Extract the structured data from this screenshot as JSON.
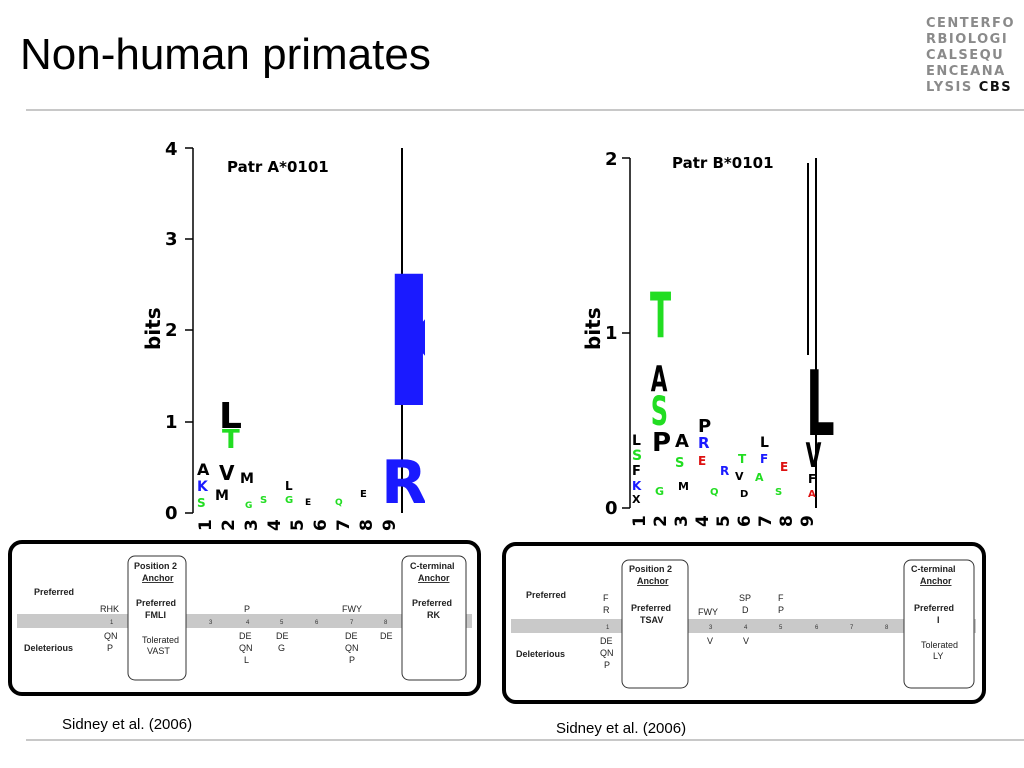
{
  "slide": {
    "title": "Non-human primates",
    "logo_lines": [
      "CENTERFO",
      "RBIOLOGI",
      "CALSEQU",
      "ENCEANA",
      "LYSIS"
    ],
    "logo_tail": "CBS"
  },
  "left": {
    "logo_title": "Patr A*0101",
    "y_label": "bits",
    "y_ticks": [
      "0",
      "1",
      "2",
      "3",
      "4"
    ],
    "x_ticks": [
      "1",
      "2",
      "3",
      "4",
      "5",
      "6",
      "7",
      "8",
      "9"
    ],
    "table": {
      "preferred_label": "Preferred",
      "deleterious_label": "Deleterious",
      "pos2_title": "Position 2",
      "pos2_anchor": "Anchor",
      "pos2_pref_label": "Preferred",
      "pos2_pref": "FMLI",
      "pos2_tol_label": "Tolerated",
      "pos2_tol": "VAST",
      "cterm_title": "C-terminal",
      "cterm_anchor": "Anchor",
      "cterm_pref_label": "Preferred",
      "cterm_pref": "RK",
      "p1_pref": "RHK",
      "p1_del": [
        "QN",
        "P"
      ],
      "p4_pref": "P",
      "p7_pref": "FWY",
      "p4_del": [
        "DE",
        "QN",
        "L"
      ],
      "p5_del": [
        "DE",
        "G"
      ],
      "p7_del": [
        "DE",
        "QN",
        "P"
      ],
      "p8_del": [
        "DE"
      ],
      "positions": [
        "1",
        "3",
        "4",
        "5",
        "6",
        "7",
        "8"
      ]
    },
    "citation": "Sidney et al. (2006)"
  },
  "right": {
    "logo_title": "Patr B*0101",
    "y_label": "bits",
    "y_ticks": [
      "0",
      "1",
      "2"
    ],
    "x_ticks": [
      "1",
      "2",
      "3",
      "4",
      "5",
      "6",
      "7",
      "8",
      "9"
    ],
    "table": {
      "preferred_label": "Preferred",
      "deleterious_label": "Deleterious",
      "pos2_title": "Position 2",
      "pos2_anchor": "Anchor",
      "pos2_pref_label": "Preferred",
      "pos2_pref": "TSAV",
      "cterm_title": "C-terminal",
      "cterm_anchor": "Anchor",
      "cterm_pref_label": "Preferred",
      "cterm_pref": "I",
      "cterm_tol_label": "Tolerated",
      "cterm_tol": "LY",
      "p1_pref": [
        "F",
        "R"
      ],
      "p1_del": [
        "DE",
        "QN",
        "P"
      ],
      "p3_pref": "FWY",
      "p4_pref": [
        "SP",
        "D"
      ],
      "p5_pref": [
        "F",
        "P"
      ],
      "p3_del": "V",
      "p4_del": "V",
      "positions": [
        "1",
        "3",
        "4",
        "5",
        "6",
        "7",
        "8"
      ]
    },
    "citation": "Sidney et al. (2006)"
  }
}
